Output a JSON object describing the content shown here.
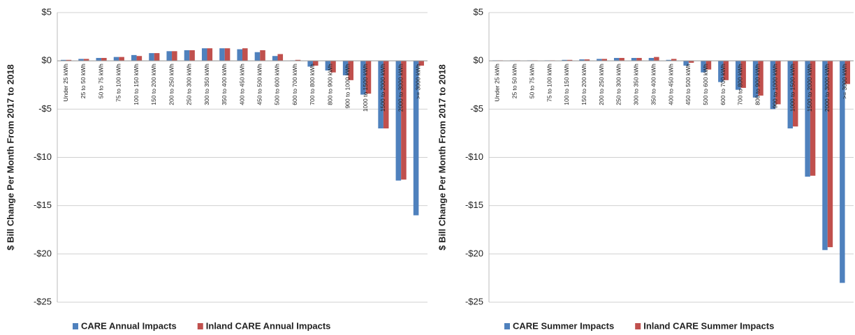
{
  "chart_data": [
    {
      "type": "bar",
      "y_label": "$ Bill  Change Per Month From 2017 to 2018",
      "categories": [
        "Under 25 kWh",
        "25 to 50 kWh",
        "50 to 75 kWh",
        "75 to 100 kWh",
        "100 to 150 kWh",
        "150 to 200 kWh",
        "200 to 250 kWh",
        "250 to 300 kWh",
        "300 to 350 kWh",
        "350 to 400 kWh",
        "400 to 450 kWh",
        "450 to 500 kWh",
        "500 to 600 kWh",
        "600 to 700 kWh",
        "700 to 800 kWh",
        "800 to 900 kWh",
        "900 to 1000 kWh",
        "1000 to 1500 kWh",
        "1500 to 2000 kWh",
        "2000 to 3000 kWh",
        ">= 3000 kWh"
      ],
      "series": [
        {
          "name": "CARE Annual Impacts",
          "color": "#4f81bd",
          "values": [
            0.1,
            0.2,
            0.3,
            0.4,
            0.6,
            0.8,
            1.0,
            1.1,
            1.3,
            1.3,
            1.2,
            0.9,
            0.5,
            0.05,
            -0.6,
            -1.0,
            -1.5,
            -3.5,
            -7.0,
            -12.4,
            -16.0
          ]
        },
        {
          "name": "Inland CARE Annual Impacts",
          "color": "#c0504d",
          "values": [
            0.1,
            0.2,
            0.3,
            0.4,
            0.5,
            0.8,
            1.0,
            1.1,
            1.3,
            1.3,
            1.3,
            1.1,
            0.7,
            0.1,
            -0.5,
            -1.2,
            -2.0,
            -3.4,
            -7.0,
            -12.3,
            -0.5
          ]
        }
      ],
      "ylim": [
        -25,
        5
      ],
      "yticks": [
        {
          "value": 5,
          "label": "$5"
        },
        {
          "value": 0,
          "label": "$0"
        },
        {
          "value": -5,
          "label": "-$5"
        },
        {
          "value": -10,
          "label": "-$10"
        },
        {
          "value": -15,
          "label": "-$15"
        },
        {
          "value": -20,
          "label": "-$20"
        },
        {
          "value": -25,
          "label": "-$25"
        }
      ],
      "grid": true,
      "legend": "bottom"
    },
    {
      "type": "bar",
      "y_label": "$ Bill  Change Per Month From 2017 to 2018",
      "categories": [
        "Under 25 kWh",
        "25 to 50 kWh",
        "50 to 75 kWh",
        "75 to 100 kWh",
        "100 to 150 kWh",
        "150 to 200 kWh",
        "200 to 250 kWh",
        "250 to 300 kWh",
        "300 to 350 kWh",
        "350 to 400 kWh",
        "400 to 450 kWh",
        "450 to 500 kWh",
        "500 to 600 kWh",
        "600 to 700 kWh",
        "700 to 800 kWh",
        "800 to 900 kWh",
        "900 to 1000 kWh",
        "1000 to 1500 kWh",
        "1500 to 2000 kWh",
        "2000 to 3000 kWh",
        ">= 3000 kWh"
      ],
      "series": [
        {
          "name": "CARE Summer Impacts",
          "color": "#4f81bd",
          "values": [
            0.05,
            0.05,
            0.05,
            0.05,
            0.1,
            0.15,
            0.2,
            0.3,
            0.3,
            0.3,
            0.1,
            -0.5,
            -1.2,
            -2.2,
            -3.0,
            -3.8,
            -5.0,
            -7.0,
            -12.0,
            -19.6,
            -23.0
          ]
        },
        {
          "name": "Inland CARE Summer Impacts",
          "color": "#c0504d",
          "values": [
            0.05,
            0.05,
            0.05,
            0.05,
            0.1,
            0.15,
            0.2,
            0.3,
            0.3,
            0.4,
            0.2,
            -0.2,
            -0.9,
            -2.0,
            -2.8,
            -3.6,
            -4.5,
            -6.8,
            -11.9,
            -19.3,
            -2.4
          ]
        }
      ],
      "ylim": [
        -25,
        5
      ],
      "yticks": [
        {
          "value": 5,
          "label": "$5"
        },
        {
          "value": 0,
          "label": "$0"
        },
        {
          "value": -5,
          "label": "-$5"
        },
        {
          "value": -10,
          "label": "-$10"
        },
        {
          "value": -15,
          "label": "-$15"
        },
        {
          "value": -20,
          "label": "-$20"
        },
        {
          "value": -25,
          "label": "-$25"
        }
      ],
      "grid": true,
      "legend": "bottom"
    }
  ]
}
